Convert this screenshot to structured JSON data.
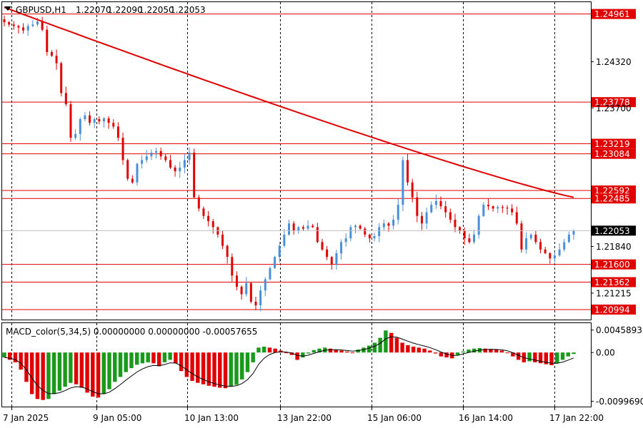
{
  "chart_data": {
    "type": "candlestick",
    "symbol_header": "GBPUSD,H1",
    "ohlc_header": [
      "1.22070",
      "1.22090",
      "1.22050",
      "1.22053"
    ],
    "current_price": "1.22053",
    "price_axis": {
      "ylim": [
        1.2085,
        1.2512
      ],
      "tick_labels": [
        "1.24320",
        "1.23700",
        "1.21840",
        "1.21215"
      ],
      "tick_values": [
        1.2432,
        1.237,
        1.2184,
        1.21215
      ]
    },
    "horizontal_levels": [
      {
        "label": "1.24961",
        "value": 1.24961
      },
      {
        "label": "1.23778",
        "value": 1.23778
      },
      {
        "label": "1.23219",
        "value": 1.23219
      },
      {
        "label": "1.23084",
        "value": 1.23084
      },
      {
        "label": "1.22592",
        "value": 1.22592
      },
      {
        "label": "1.22485",
        "value": 1.22485
      },
      {
        "label": "1.21600",
        "value": 1.216
      },
      {
        "label": "1.21362",
        "value": 1.21362
      },
      {
        "label": "1.20994",
        "value": 1.20994
      }
    ],
    "x_axis": {
      "tick_labels": [
        "7 Jan 2025",
        "9 Jan 05:00",
        "10 Jan 13:00",
        "13 Jan 22:00",
        "15 Jan 06:00",
        "16 Jan 14:00",
        "17 Jan 22:00"
      ]
    },
    "close_path": [
      [
        1.2485,
        1.2482,
        1.248,
        1.2478,
        1.2474,
        1.248,
        1.2482,
        1.2486,
        1.2475,
        1.2445,
        1.244,
        1.243,
        1.239
      ],
      [
        1.2375,
        1.233,
        1.2335,
        1.2355,
        1.236,
        1.235,
        1.2355,
        1.2352,
        1.2356,
        1.235,
        1.2345
      ],
      [
        1.233,
        1.23,
        1.2275,
        1.227,
        1.2295,
        1.23,
        1.2305,
        1.231,
        1.2312,
        1.2305,
        1.23,
        1.229,
        1.2285,
        1.229,
        1.23,
        1.231
      ],
      [
        1.225,
        1.2235,
        1.2225,
        1.2218,
        1.221,
        1.22,
        1.2185,
        1.217,
        1.2145,
        1.213,
        1.212,
        1.2135,
        1.211,
        1.2105,
        1.2125,
        1.214,
        1.2155
      ],
      [
        1.217,
        1.2185,
        1.22,
        1.2215,
        1.2205,
        1.221,
        1.2208,
        1.2212,
        1.221,
        1.219,
        1.218,
        1.217,
        1.216,
        1.2175
      ],
      [
        1.219,
        1.2195,
        1.221,
        1.2212,
        1.2208,
        1.22,
        1.2195,
        1.2198,
        1.221,
        1.2215,
        1.2212,
        1.222
      ],
      [
        1.224,
        1.23,
        1.227,
        1.225,
        1.2225,
        1.2215,
        1.223,
        1.224,
        1.2245,
        1.2238,
        1.223,
        1.222,
        1.221,
        1.2205,
        1.2195,
        1.219,
        1.22,
        1.2225
      ],
      [
        1.224,
        1.2238,
        1.2235,
        1.2237,
        1.2236,
        1.2235,
        1.223,
        1.2215,
        1.218,
        1.2195,
        1.22,
        1.219,
        1.218,
        1.2175,
        1.2168,
        1.2172,
        1.218,
        1.219,
        1.22,
        1.2205
      ]
    ],
    "moving_average": {
      "color": "#e00000",
      "start": 1.2505,
      "end": 1.225,
      "shape": "curved-decline"
    },
    "colors": {
      "bull": "#4a90d9",
      "bear": "#e00000",
      "level_line": "#e00000",
      "grid": "#000000",
      "current_label_bg": "#000000"
    },
    "macd": {
      "header": "MACD_color(5,34,5) 0.00000000 0.00000000 -0.00057655",
      "tick_labels": [
        "0.0045893",
        "0.00",
        "-0.0099690"
      ],
      "tick_values": [
        0.0045893,
        0.0,
        -0.009969
      ],
      "ylim": [
        -0.0112,
        0.006
      ],
      "histogram_path": [
        [
          -0.001,
          -0.0015,
          -0.002,
          -0.0035,
          -0.006,
          -0.0085,
          -0.0095,
          -0.0097,
          -0.0095,
          -0.0085,
          -0.0078,
          -0.007
        ],
        [
          -0.0062,
          -0.0065,
          -0.0072,
          -0.0082,
          -0.009,
          -0.0092,
          -0.0085,
          -0.0075,
          -0.006,
          -0.005,
          -0.004,
          -0.0032,
          -0.0025,
          -0.0022,
          -0.002,
          -0.0022
        ],
        [
          -0.0028,
          -0.002,
          -0.0015,
          -0.0022,
          -0.0038,
          -0.005,
          -0.0058,
          -0.0062,
          -0.0065,
          -0.0068,
          -0.007,
          -0.0072,
          -0.0073,
          -0.007,
          -0.0066,
          -0.0055,
          -0.004,
          -0.002
        ],
        [
          0.001,
          0.0012,
          0.001,
          0.0008,
          0.0004,
          0.0,
          -0.0005,
          -0.0015,
          -0.001,
          -0.0002,
          0.0005,
          0.0008,
          0.001,
          0.0008,
          0.0006,
          0.0004,
          0.0002,
          0.0
        ],
        [
          0.0006,
          0.001,
          0.0014,
          0.002,
          0.003,
          0.0045,
          0.004,
          0.003,
          0.002,
          0.0015,
          0.0012,
          0.001,
          0.0008,
          0.0004,
          -0.0002,
          -0.0008,
          -0.001,
          -0.0012
        ],
        [
          -0.0005,
          0.0002,
          0.0006,
          0.0008,
          0.0009,
          0.0008,
          0.0007,
          0.0006,
          0.0004,
          0.0,
          -0.0008,
          -0.0015,
          -0.002,
          -0.0018,
          -0.002,
          -0.0022,
          -0.0024,
          -0.0026,
          -0.0022,
          -0.0015,
          -0.0008,
          -0.0003
        ]
      ]
    }
  }
}
